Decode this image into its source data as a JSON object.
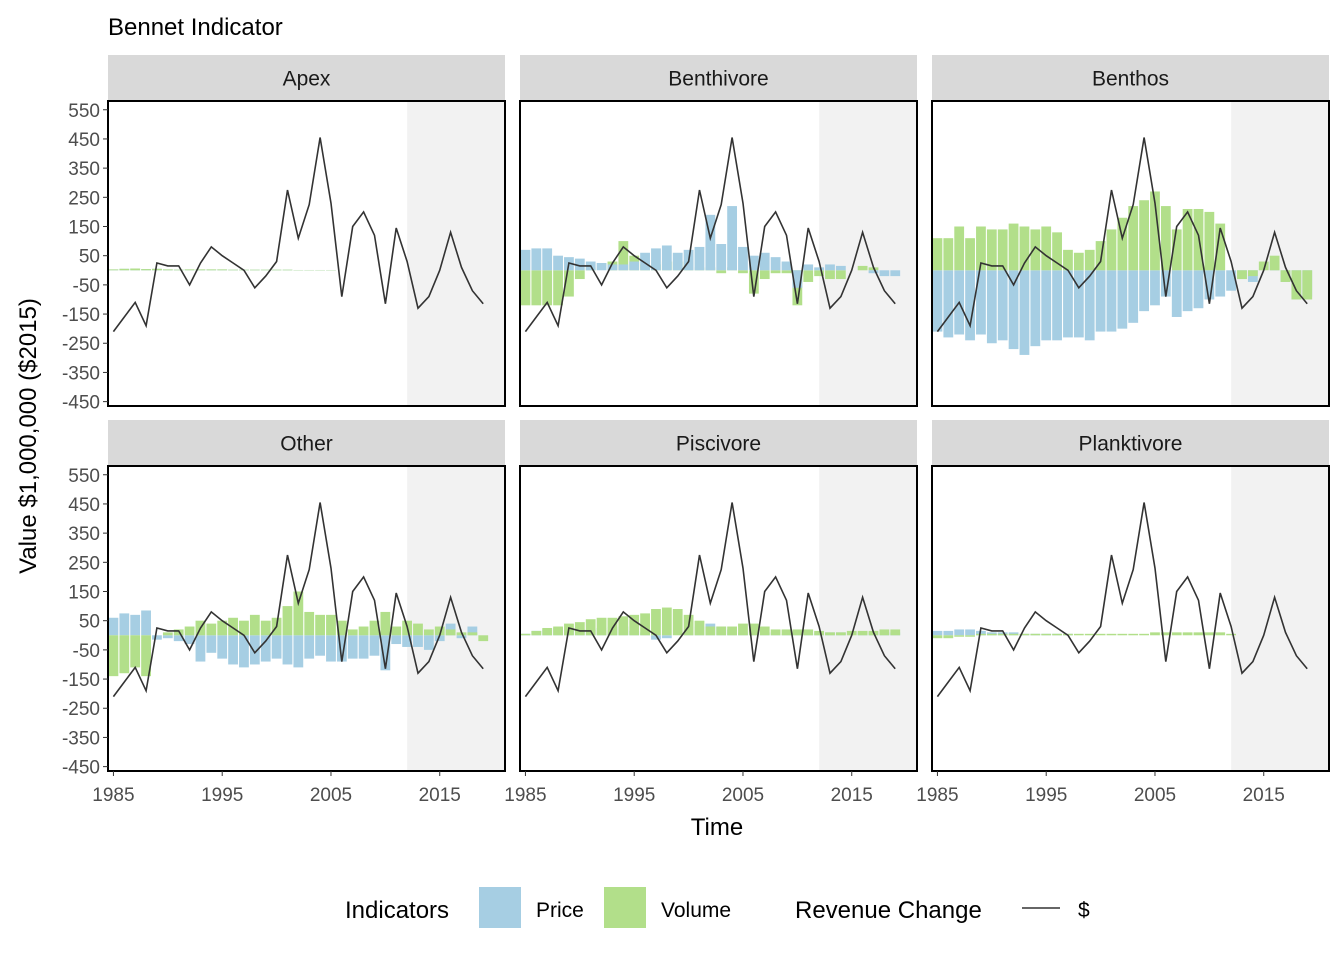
{
  "chart_data": {
    "type": "bar",
    "title": "Bennet Indicator",
    "xlabel": "Time",
    "ylabel": "Value $1,000,000 ($2015)",
    "x_ticks": [
      1985,
      1995,
      2005,
      2015
    ],
    "y_ticks": [
      -450,
      -350,
      -250,
      -150,
      -50,
      50,
      150,
      250,
      350,
      450,
      550
    ],
    "ylim": [
      -450,
      550
    ],
    "xlim": [
      1984.5,
      2021
    ],
    "shaded_region": [
      2012,
      2021
    ],
    "years": [
      1985,
      1986,
      1987,
      1988,
      1989,
      1990,
      1991,
      1992,
      1993,
      1994,
      1995,
      1996,
      1997,
      1998,
      1999,
      2000,
      2001,
      2002,
      2003,
      2004,
      2005,
      2006,
      2007,
      2008,
      2009,
      2010,
      2011,
      2012,
      2013,
      2014,
      2015,
      2016,
      2017,
      2018,
      2019
    ],
    "legend": {
      "indicators_title": "Indicators",
      "price_label": "Price",
      "volume_label": "Volume",
      "revenue_title": "Revenue Change",
      "revenue_label": "$",
      "price_color": "#a6cee3",
      "volume_color": "#b2df8a",
      "line_color": "#333333"
    },
    "revenue_change": [
      -210,
      -160,
      -110,
      -190,
      25,
      15,
      15,
      -50,
      25,
      80,
      50,
      25,
      0,
      -60,
      -20,
      30,
      275,
      110,
      225,
      455,
      230,
      -90,
      150,
      200,
      120,
      -115,
      145,
      30,
      -130,
      -90,
      0,
      130,
      10,
      -70,
      -115
    ],
    "panels": [
      {
        "name": "Apex",
        "price": [
          3,
          5,
          6,
          4,
          5,
          3,
          2,
          3,
          3,
          3,
          3,
          2,
          2,
          2,
          2,
          2,
          2,
          1,
          1,
          1,
          1,
          0,
          0,
          0,
          0,
          0,
          0,
          0,
          0,
          0,
          0,
          0,
          0,
          0,
          0
        ],
        "volume": [
          3,
          5,
          6,
          4,
          5,
          3,
          2,
          3,
          3,
          3,
          3,
          2,
          2,
          2,
          2,
          2,
          2,
          1,
          1,
          1,
          1,
          0,
          0,
          0,
          0,
          0,
          0,
          0,
          0,
          0,
          0,
          0,
          0,
          0,
          0
        ]
      },
      {
        "name": "Benthivore",
        "price": [
          70,
          75,
          75,
          50,
          45,
          40,
          30,
          25,
          20,
          20,
          30,
          60,
          75,
          85,
          60,
          70,
          80,
          190,
          90,
          220,
          80,
          50,
          60,
          45,
          30,
          -60,
          20,
          10,
          20,
          15,
          0,
          0,
          -10,
          -20,
          -20
        ],
        "volume": [
          -120,
          -120,
          -120,
          -120,
          -90,
          -30,
          10,
          0,
          30,
          100,
          50,
          20,
          20,
          30,
          30,
          30,
          10,
          10,
          -10,
          10,
          -10,
          -80,
          -30,
          -10,
          -10,
          -120,
          -40,
          -20,
          -30,
          -30,
          0,
          15,
          10,
          0,
          0
        ],
        "price_on_top": true
      },
      {
        "name": "Benthos",
        "price": [
          -210,
          -230,
          -220,
          -240,
          -220,
          -250,
          -240,
          -270,
          -290,
          -260,
          -240,
          -240,
          -230,
          -230,
          -240,
          -210,
          -210,
          -200,
          -180,
          -140,
          -120,
          -90,
          -160,
          -140,
          -130,
          -100,
          -90,
          -70,
          -30,
          -40,
          0,
          30,
          -40,
          -100,
          -90
        ],
        "volume": [
          110,
          110,
          150,
          110,
          150,
          140,
          140,
          160,
          150,
          140,
          150,
          130,
          70,
          60,
          70,
          100,
          140,
          180,
          220,
          240,
          270,
          220,
          140,
          210,
          210,
          200,
          160,
          0,
          -30,
          -20,
          30,
          50,
          -40,
          -100,
          -100
        ]
      },
      {
        "name": "Other",
        "price": [
          60,
          75,
          70,
          85,
          -15,
          -10,
          -20,
          -30,
          -90,
          -60,
          -80,
          -100,
          -110,
          -100,
          -90,
          -80,
          -100,
          -110,
          -80,
          -70,
          -90,
          -90,
          -80,
          -80,
          -70,
          -120,
          -30,
          -40,
          -40,
          -50,
          -20,
          40,
          -10,
          30,
          0
        ],
        "volume": [
          -140,
          -130,
          -110,
          -140,
          0,
          10,
          20,
          30,
          50,
          40,
          50,
          60,
          50,
          70,
          50,
          60,
          100,
          150,
          80,
          70,
          70,
          50,
          20,
          30,
          50,
          80,
          30,
          50,
          40,
          20,
          30,
          20,
          10,
          10,
          -20
        ]
      },
      {
        "name": "Piscivore",
        "price": [
          5,
          15,
          20,
          25,
          20,
          20,
          20,
          25,
          30,
          30,
          15,
          10,
          -15,
          -10,
          0,
          10,
          30,
          40,
          30,
          20,
          10,
          15,
          10,
          10,
          5,
          5,
          5,
          10,
          10,
          10,
          0,
          10,
          10,
          10,
          10
        ],
        "volume": [
          5,
          15,
          25,
          30,
          40,
          45,
          55,
          60,
          60,
          65,
          70,
          75,
          90,
          95,
          90,
          70,
          50,
          30,
          30,
          30,
          40,
          40,
          30,
          20,
          20,
          20,
          20,
          15,
          10,
          10,
          15,
          15,
          15,
          20,
          20
        ]
      },
      {
        "name": "Planktivore",
        "price": [
          15,
          15,
          20,
          20,
          15,
          10,
          10,
          10,
          5,
          5,
          5,
          5,
          5,
          0,
          0,
          0,
          0,
          0,
          0,
          0,
          0,
          0,
          0,
          0,
          0,
          0,
          0,
          0,
          0,
          0,
          0,
          0,
          0,
          0,
          0
        ],
        "volume": [
          -10,
          -10,
          -5,
          -5,
          5,
          5,
          5,
          5,
          5,
          5,
          5,
          5,
          5,
          5,
          5,
          5,
          5,
          5,
          5,
          5,
          10,
          10,
          10,
          10,
          10,
          10,
          10,
          5,
          0,
          0,
          0,
          0,
          0,
          0,
          0
        ]
      }
    ]
  }
}
